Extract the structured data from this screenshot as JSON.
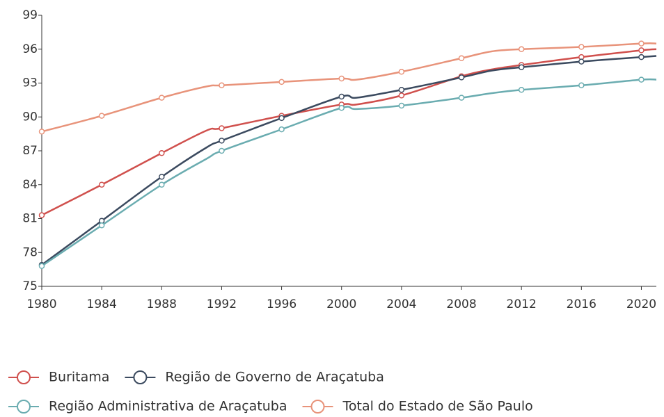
{
  "chart_data": {
    "type": "line",
    "x": [
      1980,
      1984,
      1988,
      1991,
      1992,
      1996,
      2000,
      2001,
      2004,
      2008,
      2010,
      2012,
      2016,
      2020,
      2021
    ],
    "series": [
      {
        "name": "Buritama",
        "color": "#d0504d",
        "values": [
          81.3,
          84.0,
          86.8,
          88.8,
          89.0,
          90.1,
          91.1,
          91.1,
          91.9,
          93.6,
          94.2,
          94.6,
          95.3,
          95.9,
          96.0
        ]
      },
      {
        "name": "Região de Governo de Araçatuba",
        "color": "#3b4a5f",
        "values": [
          76.9,
          80.8,
          84.7,
          87.3,
          87.9,
          89.9,
          91.8,
          91.7,
          92.4,
          93.5,
          94.1,
          94.4,
          94.9,
          95.3,
          95.4
        ]
      },
      {
        "name": "Região Administrativa de Araçatuba",
        "color": "#6aacb0",
        "values": [
          76.8,
          80.4,
          84.0,
          86.3,
          87.0,
          88.9,
          90.8,
          90.7,
          91.0,
          91.7,
          92.1,
          92.4,
          92.8,
          93.3,
          93.3
        ]
      },
      {
        "name": "Total do Estado de São Paulo",
        "color": "#e8937a",
        "values": [
          88.7,
          90.1,
          91.7,
          92.7,
          92.8,
          93.1,
          93.4,
          93.3,
          94.0,
          95.2,
          95.8,
          96.0,
          96.2,
          96.5,
          96.5
        ]
      }
    ],
    "xlim": [
      1980,
      2021
    ],
    "xticks": [
      1980,
      1984,
      1988,
      1992,
      1996,
      2000,
      2004,
      2008,
      2012,
      2016,
      2020
    ],
    "ylim": [
      75,
      99
    ],
    "yticks": [
      75,
      78,
      81,
      84,
      87,
      90,
      93,
      96,
      99
    ],
    "grid": false,
    "legend": "bottom"
  }
}
